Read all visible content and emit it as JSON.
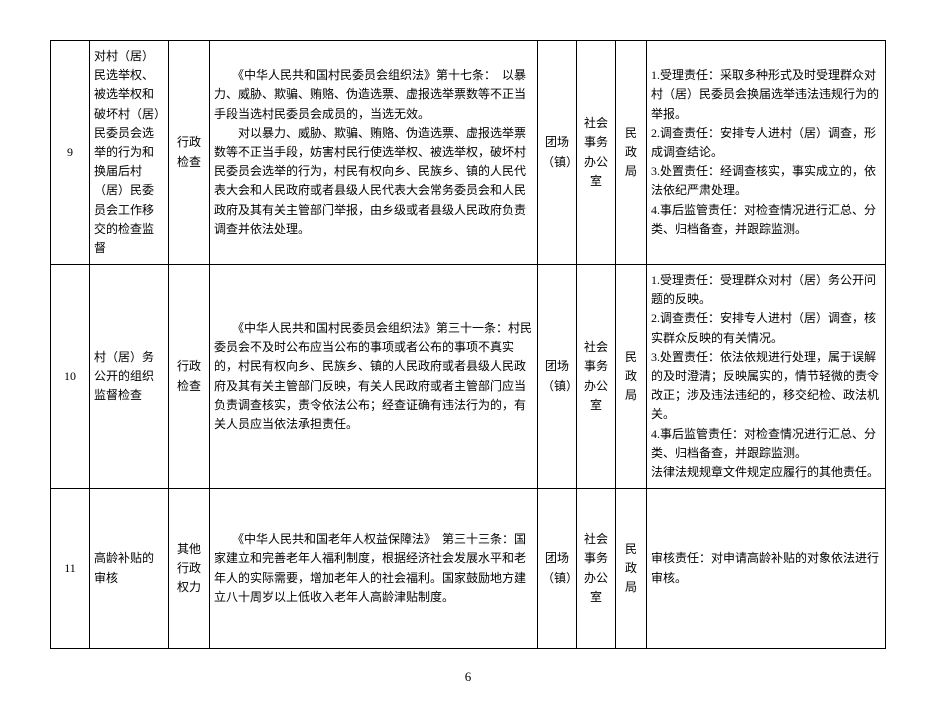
{
  "pageNumber": "6",
  "rows": [
    {
      "num": "9",
      "item": "对村（居）民选举权、被选举权和破坏村（居）民委员会选举的行为和换届后村（居）民委员会工作移交的检查监督",
      "category": "行政检查",
      "basis": "　　《中华人民共和国村民委员会组织法》第十七条：　以暴力、威胁、欺骗、贿赂、伪造选票、虚报选举票数等不正当手段当选村民委员会成员的，当选无效。\n　　对以暴力、威胁、欺骗、贿赂、伪造选票、虚报选举票数等不正当手段，妨害村民行使选举权、被选举权，破坏村民委员会选举的行为，村民有权向乡、民族乡、镇的人民代表大会和人民政府或者县级人民代表大会常务委员会和人民政府及其有关主管部门举报，由乡级或者县级人民政府负责调查并依法处理。",
      "org1": "团场（镇）",
      "org2": "社会事务办公室",
      "dept": "民政局",
      "resp": "1.受理责任：采取多种形式及时受理群众对村（居）民委员会换届选举违法违规行为的举报。\n2.调查责任：安排专人进村（居）调查，形成调查结论。\n3.处置责任：经调查核实，事实成立的，依法依纪严肃处理。\n4.事后监管责任：对检查情况进行汇总、分类、归档备查，并跟踪监测。"
    },
    {
      "num": "10",
      "item": "村（居）务公开的组织监督检查",
      "category": "行政检查",
      "basis": "　　《中华人民共和国村民委员会组织法》第三十一条：村民委员会不及时公布应当公布的事项或者公布的事项不真实的，村民有权向乡、民族乡、镇的人民政府或者县级人民政府及其有关主管部门反映，有关人民政府或者主管部门应当负责调查核实，责令依法公布；经查证确有违法行为的，有关人员应当依法承担责任。",
      "org1": "团场（镇）",
      "org2": "社会事务办公室",
      "dept": "民政局",
      "resp": "1.受理责任：受理群众对村（居）务公开问题的反映。\n2.调查责任：安排专人进村（居）调查，核实群众反映的有关情况。\n3.处置责任：依法依规进行处理，属于误解的及时澄清；反映属实的，情节轻微的责令改正；涉及违法违纪的，移交纪检、政法机关。\n4.事后监管责任：对检查情况进行汇总、分类、归档备查，并跟踪监测。\n法律法规规章文件规定应履行的其他责任。"
    },
    {
      "num": "11",
      "item": "高龄补贴的审核",
      "category": "其他行政权力",
      "basis": "　　《中华人民共和国老年人权益保障法》　第三十三条：国家建立和完善老年人福利制度，根据经济社会发展水平和老年人的实际需要，增加老年人的社会福利。国家鼓励地方建立八十周岁以上低收入老年人高龄津贴制度。",
      "org1": "团场（镇）",
      "org2": "社会事务办公室",
      "dept": "民政局",
      "resp": "审核责任：对申请高龄补贴的对象依法进行审核。"
    }
  ]
}
